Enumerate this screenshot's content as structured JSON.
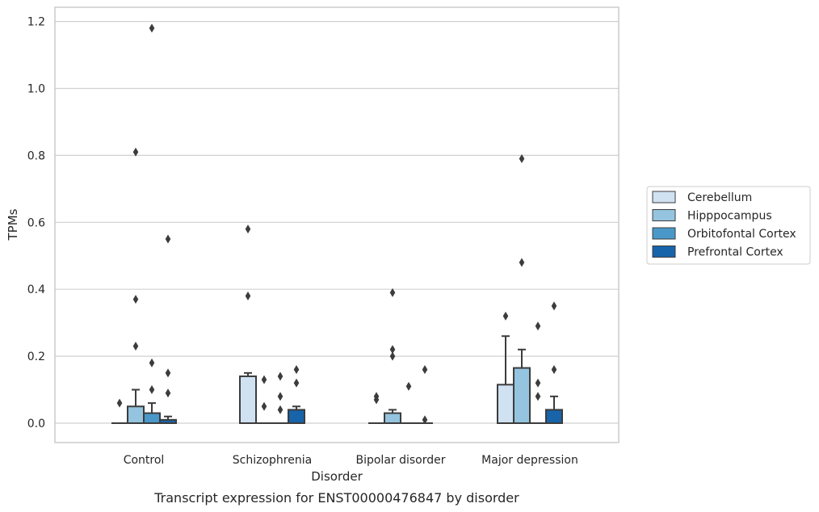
{
  "chart_data": {
    "type": "box",
    "title": "",
    "caption": "Transcript expression for ENST00000476847 by disorder",
    "xlabel": "Disorder",
    "ylabel": "TPMs",
    "ylim": [
      -0.057,
      1.24
    ],
    "yticks": [
      0.0,
      0.2,
      0.4,
      0.6,
      0.8,
      1.0,
      1.2
    ],
    "ytick_labels": [
      "0.0",
      "0.2",
      "0.4",
      "0.6",
      "0.8",
      "1.0",
      "1.2"
    ],
    "grid": true,
    "legend_position": "right",
    "categories": [
      "Control",
      "Schizophrenia",
      "Bipolar disorder",
      "Major depression"
    ],
    "series": [
      {
        "name": "Cerebellum",
        "color": "#d0e1f2",
        "boxes": [
          {
            "q1": 0,
            "median": 0,
            "q3": 0,
            "whisker_low": 0,
            "whisker_high": 0,
            "outliers": [
              0.06
            ]
          },
          {
            "q1": 0,
            "median": 0,
            "q3": 0.14,
            "whisker_low": 0,
            "whisker_high": 0.15,
            "outliers": [
              0.58,
              0.38
            ]
          },
          {
            "q1": 0,
            "median": 0,
            "q3": 0,
            "whisker_low": 0,
            "whisker_high": 0,
            "outliers": [
              0.08,
              0.07
            ]
          },
          {
            "q1": 0,
            "median": 0,
            "q3": 0.115,
            "whisker_low": 0,
            "whisker_high": 0.26,
            "outliers": [
              0.32
            ]
          }
        ]
      },
      {
        "name": "Hipppocampus",
        "color": "#94c4df",
        "boxes": [
          {
            "q1": 0,
            "median": 0,
            "q3": 0.05,
            "whisker_low": 0,
            "whisker_high": 0.1,
            "outliers": [
              0.81,
              0.37,
              0.23
            ]
          },
          {
            "q1": 0,
            "median": 0,
            "q3": 0,
            "whisker_low": 0,
            "whisker_high": 0,
            "outliers": [
              0.13,
              0.05
            ]
          },
          {
            "q1": 0,
            "median": 0,
            "q3": 0.03,
            "whisker_low": 0,
            "whisker_high": 0.04,
            "outliers": [
              0.39,
              0.22,
              0.2
            ]
          },
          {
            "q1": 0,
            "median": 0,
            "q3": 0.165,
            "whisker_low": 0,
            "whisker_high": 0.22,
            "outliers": [
              0.79,
              0.48
            ]
          }
        ]
      },
      {
        "name": "Orbitofontal Cortex",
        "color": "#4a98c9",
        "boxes": [
          {
            "q1": 0,
            "median": 0,
            "q3": 0.03,
            "whisker_low": 0,
            "whisker_high": 0.06,
            "outliers": [
              1.18,
              0.18,
              0.1
            ]
          },
          {
            "q1": 0,
            "median": 0,
            "q3": 0,
            "whisker_low": 0,
            "whisker_high": 0,
            "outliers": [
              0.14,
              0.08,
              0.04
            ]
          },
          {
            "q1": 0,
            "median": 0,
            "q3": 0,
            "whisker_low": 0,
            "whisker_high": 0,
            "outliers": [
              0.11
            ]
          },
          {
            "q1": 0,
            "median": 0,
            "q3": 0,
            "whisker_low": 0,
            "whisker_high": 0,
            "outliers": [
              0.29,
              0.12,
              0.08
            ]
          }
        ]
      },
      {
        "name": "Prefrontal Cortex",
        "color": "#1764ab",
        "boxes": [
          {
            "q1": 0,
            "median": 0,
            "q3": 0.01,
            "whisker_low": 0,
            "whisker_high": 0.02,
            "outliers": [
              0.55,
              0.15,
              0.09
            ]
          },
          {
            "q1": 0,
            "median": 0,
            "q3": 0.04,
            "whisker_low": 0,
            "whisker_high": 0.05,
            "outliers": [
              0.16,
              0.12
            ]
          },
          {
            "q1": 0,
            "median": 0,
            "q3": 0,
            "whisker_low": 0,
            "whisker_high": 0,
            "outliers": [
              0.16,
              0.01
            ]
          },
          {
            "q1": 0,
            "median": 0,
            "q3": 0.04,
            "whisker_low": 0,
            "whisker_high": 0.08,
            "outliers": [
              0.35,
              0.16
            ]
          }
        ]
      }
    ]
  }
}
